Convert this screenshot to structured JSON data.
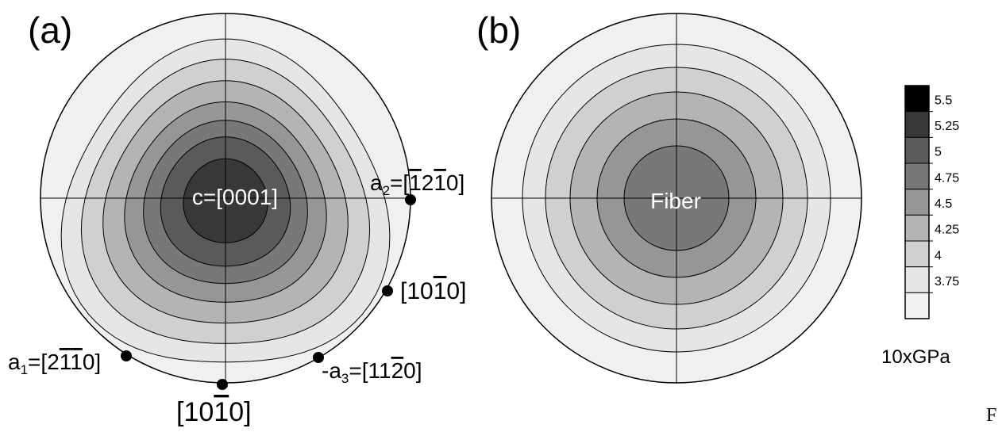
{
  "panels": [
    {
      "label": "(a)",
      "center_label": "c=[0001]",
      "contour_levels": [
        5.25,
        5,
        4.75,
        4.5,
        4.25,
        4,
        3.75
      ],
      "points": [
        {
          "name": "a2",
          "prefix": "a",
          "sub": "2",
          "eq": "=[",
          "idx": [
            {
              "t": "1",
              "bar": true
            },
            {
              "t": "2",
              "bar": false
            },
            {
              "t": "1",
              "bar": true
            },
            {
              "t": "0",
              "bar": false
            }
          ],
          "close": "]"
        },
        {
          "name": "m1",
          "prefix": "",
          "sub": "",
          "eq": "[",
          "idx": [
            {
              "t": "1",
              "bar": false
            },
            {
              "t": "0",
              "bar": false
            },
            {
              "t": "1",
              "bar": true
            },
            {
              "t": "0",
              "bar": false
            }
          ],
          "close": "]"
        },
        {
          "name": "a3",
          "prefix": "-a",
          "sub": "3",
          "eq": "=[",
          "idx": [
            {
              "t": "1",
              "bar": false
            },
            {
              "t": "1",
              "bar": false
            },
            {
              "t": "2",
              "bar": true
            },
            {
              "t": "0",
              "bar": false
            }
          ],
          "close": "]"
        },
        {
          "name": "m2",
          "prefix": "",
          "sub": "",
          "eq": "[",
          "idx": [
            {
              "t": "1",
              "bar": false
            },
            {
              "t": "0",
              "bar": false
            },
            {
              "t": "1",
              "bar": true
            },
            {
              "t": "0",
              "bar": false
            }
          ],
          "close": "]"
        },
        {
          "name": "a1",
          "prefix": "a",
          "sub": "1",
          "eq": "=[",
          "idx": [
            {
              "t": "2",
              "bar": false
            },
            {
              "t": "1",
              "bar": true
            },
            {
              "t": "1",
              "bar": true
            },
            {
              "t": "0",
              "bar": false
            }
          ],
          "close": "]"
        }
      ]
    },
    {
      "label": "(b)",
      "center_label": "Fiber",
      "contour_levels": [
        5,
        4.75,
        4.5,
        4.25,
        4,
        3.75
      ]
    }
  ],
  "legend": {
    "ticks": [
      "5.5",
      "5.25",
      "5",
      "4.75",
      "4.5",
      "4.25",
      "4",
      "3.75"
    ],
    "colors": [
      "#000000",
      "#383838",
      "#5a5a5a",
      "#787878",
      "#969696",
      "#b4b4b4",
      "#d0d0d0",
      "#e6e6e6",
      "#f0f0f0"
    ],
    "unit": "10xGPa"
  },
  "corner_text": "F"
}
